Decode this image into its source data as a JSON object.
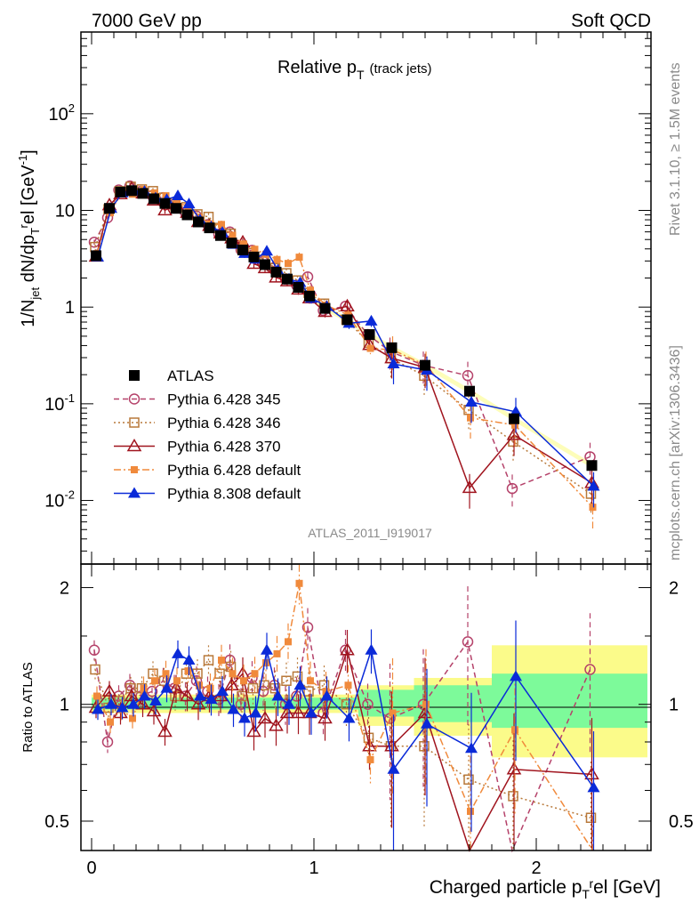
{
  "header": {
    "left": "7000 GeV pp",
    "right": "Soft QCD"
  },
  "side": {
    "rivet": "Rivet 3.1.10, ≥ 1.5M events",
    "site": "mcplots.cern.ch [arXiv:1306.3436]"
  },
  "plot": {
    "title": "Relative p",
    "title_sub": "T",
    "title_paren": "(track jets)",
    "analysis": "ATLAS_2011_I919017",
    "ylabel_main": "1/N_jet dN/dp_T^rel [GeV^-1]",
    "ylabel_ratio": "Ratio to ATLAS",
    "xlabel": "Charged particle p_T^rel [GeV]",
    "xticks": [
      "0",
      "1",
      "2"
    ],
    "yticks_main": [
      "10^-2",
      "10^-1",
      "1",
      "10",
      "10^2"
    ],
    "yticks_ratio": [
      "0.5",
      "1",
      "2"
    ]
  },
  "legend": [
    {
      "name": "ATLAS",
      "color": "#000000",
      "marker": "square-filled",
      "dash": "none"
    },
    {
      "name": "Pythia 6.428 345",
      "color": "#b5426a",
      "marker": "circle-open",
      "dash": "dashed"
    },
    {
      "name": "Pythia 6.428 346",
      "color": "#b8793a",
      "marker": "square-open",
      "dash": "dotted"
    },
    {
      "name": "Pythia 6.428 370",
      "color": "#a0141e",
      "marker": "triangle-open",
      "dash": "solid"
    },
    {
      "name": "Pythia 6.428 default",
      "color": "#f08a3c",
      "marker": "square-filled-small",
      "dash": "dashdot"
    },
    {
      "name": "Pythia 8.308 default",
      "color": "#0a2ad8",
      "marker": "triangle-filled",
      "dash": "solid"
    }
  ],
  "chart_data": {
    "type": "line",
    "x_scale": "linear",
    "y_scale": "log",
    "xlim": [
      -0.05,
      2.55
    ],
    "ylim": [
      0.0022,
      700
    ],
    "ratio_ylim": [
      0.42,
      2.3
    ],
    "x": [
      0.02,
      0.08,
      0.13,
      0.18,
      0.23,
      0.28,
      0.33,
      0.38,
      0.43,
      0.48,
      0.53,
      0.58,
      0.63,
      0.68,
      0.73,
      0.78,
      0.83,
      0.88,
      0.93,
      0.98,
      1.05,
      1.15,
      1.25,
      1.35,
      1.5,
      1.7,
      1.9,
      2.25
    ],
    "data": {
      "name": "ATLAS",
      "values": [
        3.4,
        10.5,
        15.5,
        16.0,
        15.0,
        13.2,
        11.8,
        10.5,
        9.0,
        7.6,
        6.6,
        5.5,
        4.6,
        3.9,
        3.3,
        2.75,
        2.3,
        1.95,
        1.6,
        1.3,
        0.97,
        0.74,
        0.52,
        0.38,
        0.25,
        0.135,
        0.07,
        0.023
      ]
    },
    "mc_band_ratio": [
      {
        "x": [
          0.0,
          1.2
        ],
        "green": [
          0.97,
          1.04
        ],
        "yellow": [
          0.95,
          1.06
        ]
      },
      {
        "x": [
          1.2,
          1.45
        ],
        "green": [
          0.93,
          1.09
        ],
        "yellow": [
          0.88,
          1.12
        ]
      },
      {
        "x": [
          1.45,
          1.8
        ],
        "green": [
          0.9,
          1.12
        ],
        "yellow": [
          0.83,
          1.17
        ]
      },
      {
        "x": [
          1.8,
          2.5
        ],
        "green": [
          0.87,
          1.2
        ],
        "yellow": [
          0.73,
          1.42
        ]
      }
    ],
    "series": [
      {
        "name": "Pythia 6.428 345",
        "ratio": [
          1.38,
          0.8,
          1.05,
          1.12,
          1.05,
          1.08,
          1.15,
          1.1,
          1.05,
          1.15,
          1.08,
          1.03,
          1.3,
          1.0,
          1.17,
          1.08,
          1.12,
          1.0,
          1.05,
          1.58,
          0.95,
          1.38,
          1.0,
          0.92,
          1.0,
          1.45,
          0.19,
          1.23
        ]
      },
      {
        "name": "Pythia 6.428 346",
        "ratio": [
          1.23,
          0.98,
          1.02,
          1.1,
          1.1,
          1.2,
          1.15,
          1.05,
          1.2,
          1.2,
          1.3,
          1.2,
          1.25,
          1.05,
          1.1,
          1.12,
          1.1,
          1.15,
          1.18,
          1.08,
          1.12,
          1.0,
          0.82,
          0.78,
          0.78,
          0.64,
          0.58,
          0.51
        ]
      },
      {
        "name": "Pythia 6.428 370",
        "ratio": [
          0.98,
          1.08,
          0.95,
          1.05,
          1.0,
          0.96,
          0.85,
          1.1,
          1.05,
          1.0,
          1.05,
          1.05,
          1.12,
          1.2,
          0.85,
          0.92,
          0.88,
          0.95,
          0.95,
          0.95,
          0.92,
          1.38,
          0.78,
          0.78,
          0.95,
          0.1,
          0.68,
          0.66
        ]
      },
      {
        "name": "Pythia 6.428 default",
        "ratio": [
          1.05,
          0.9,
          0.97,
          0.92,
          1.1,
          1.15,
          1.2,
          1.15,
          1.22,
          1.12,
          1.1,
          1.3,
          1.2,
          1.15,
          1.2,
          1.28,
          1.35,
          1.45,
          2.05,
          1.15,
          1.08,
          1.12,
          0.72,
          0.95,
          1.0,
          0.53,
          0.86,
          0.37
        ]
      },
      {
        "name": "Pythia 8.308 default",
        "ratio": [
          0.97,
          1.0,
          0.98,
          1.0,
          1.05,
          1.02,
          1.1,
          1.35,
          1.3,
          1.05,
          1.03,
          1.08,
          0.97,
          0.92,
          0.95,
          1.38,
          1.05,
          1.0,
          1.12,
          0.95,
          1.05,
          0.92,
          1.38,
          0.68,
          0.89,
          0.77,
          1.18,
          0.61
        ]
      }
    ]
  }
}
